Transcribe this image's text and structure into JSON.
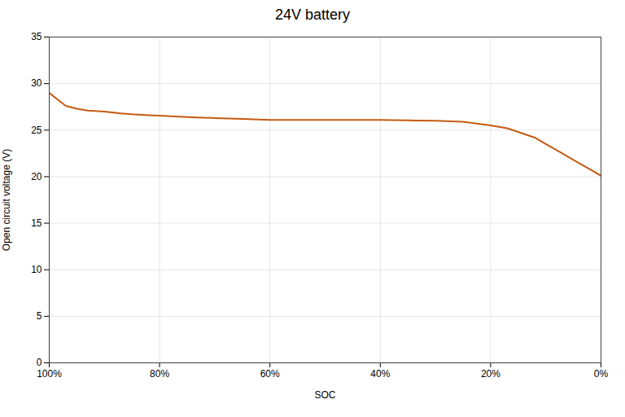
{
  "chart_data": {
    "type": "line",
    "title": "24V battery",
    "xlabel": "SOC",
    "ylabel": "Open circuit voltage (V)",
    "color": "#C55A11",
    "x": [
      100,
      97,
      95,
      93,
      90,
      87,
      85,
      82,
      80,
      75,
      70,
      65,
      60,
      55,
      50,
      45,
      40,
      35,
      30,
      25,
      20,
      17,
      15,
      12,
      10,
      7,
      5,
      2,
      0
    ],
    "values": [
      29.0,
      27.6,
      27.3,
      27.1,
      27.0,
      26.8,
      26.7,
      26.6,
      26.55,
      26.4,
      26.3,
      26.2,
      26.1,
      26.1,
      26.1,
      26.1,
      26.1,
      26.05,
      26.0,
      25.9,
      25.5,
      25.2,
      24.8,
      24.2,
      23.5,
      22.5,
      21.8,
      20.8,
      20.1
    ],
    "xlim": [
      100,
      0
    ],
    "xticks": [
      {
        "value": 100,
        "label": "100%"
      },
      {
        "value": 80,
        "label": "80%"
      },
      {
        "value": 60,
        "label": "60%"
      },
      {
        "value": 40,
        "label": "40%"
      },
      {
        "value": 20,
        "label": "20%"
      },
      {
        "value": 0,
        "label": "0%"
      }
    ],
    "ylim": [
      0,
      35
    ],
    "yticks": [
      0,
      5,
      10,
      15,
      20,
      25,
      30,
      35
    ],
    "grid": true
  }
}
